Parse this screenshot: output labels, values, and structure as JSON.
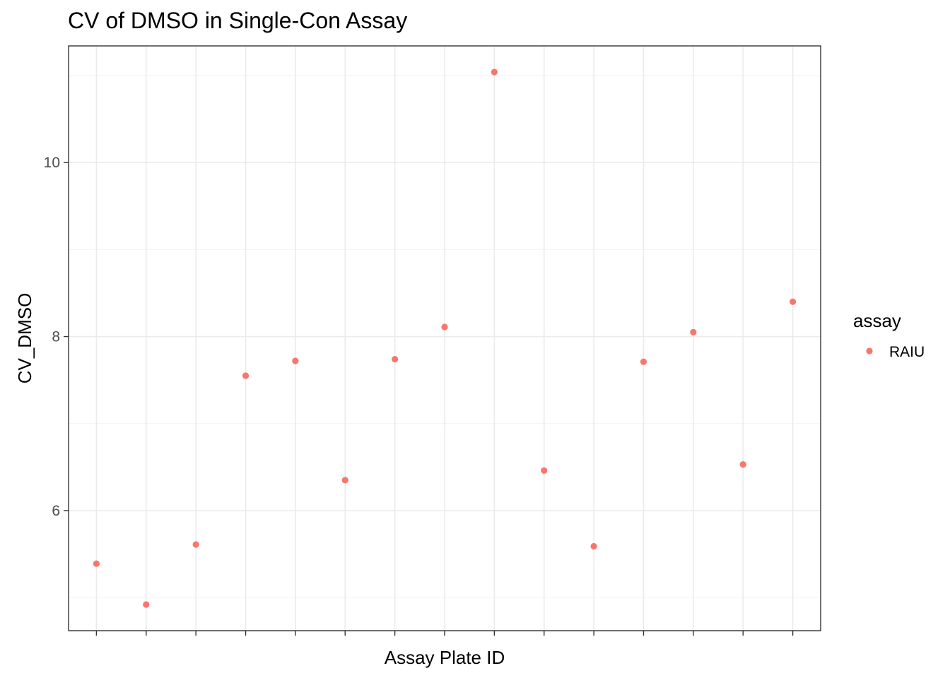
{
  "chart_data": {
    "type": "scatter",
    "title": "CV of DMSO in Single-Con Assay",
    "xlabel": "Assay Plate ID",
    "ylabel": "CV_DMSO",
    "x_tick_labels_shown": false,
    "y_ticks": [
      6,
      8,
      10
    ],
    "ylim": [
      4.62,
      11.34
    ],
    "grid": true,
    "legend": {
      "title": "assay",
      "placement": "right"
    },
    "series": [
      {
        "name": "RAIU",
        "color": "#f8766d",
        "x": [
          1,
          2,
          3,
          4,
          5,
          6,
          7,
          8,
          9,
          10,
          11,
          12,
          13,
          14,
          15
        ],
        "values": [
          5.39,
          4.92,
          5.61,
          7.55,
          7.72,
          6.35,
          7.74,
          8.11,
          11.04,
          6.46,
          5.59,
          7.71,
          8.05,
          6.53,
          8.4
        ]
      }
    ]
  }
}
